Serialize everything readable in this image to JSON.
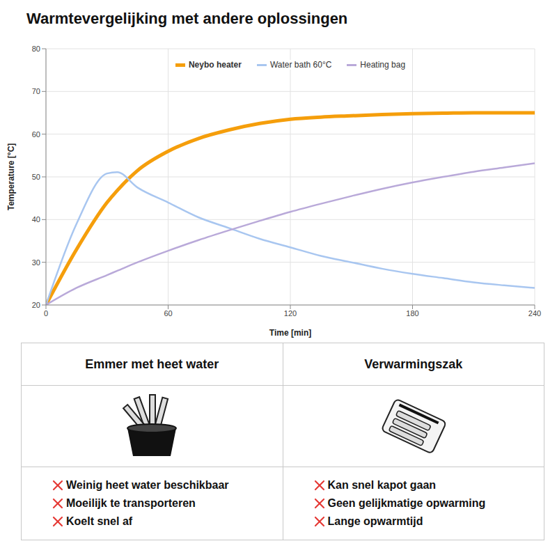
{
  "chart_data": {
    "type": "line",
    "title": "Warmtevergelijking met andere oplossingen",
    "x_label": "Time [min]",
    "y_label": "Temperature [°C]",
    "x": [
      0,
      15,
      30,
      35,
      45,
      60,
      75,
      90,
      105,
      120,
      135,
      150,
      165,
      180,
      195,
      210,
      225,
      240
    ],
    "series": [
      {
        "name": "Neybo heater",
        "color": "#f59e0b",
        "values": [
          20,
          33,
          44,
          46.8,
          51.5,
          56,
          59,
          61,
          62.5,
          63.5,
          64,
          64.3,
          64.6,
          64.8,
          64.9,
          65,
          65,
          65
        ]
      },
      {
        "name": "Water bath 60°C",
        "color": "#a8c6f0",
        "values": [
          20,
          39,
          50.8,
          51.1,
          47.5,
          44,
          40.5,
          38,
          35.5,
          33.5,
          31.5,
          30,
          28.5,
          27.3,
          26.3,
          25.3,
          24.6,
          24
        ]
      },
      {
        "name": "Heating bag",
        "color": "#b9a9d9",
        "values": [
          20,
          24,
          27,
          28,
          30,
          32.7,
          35.2,
          37.5,
          39.7,
          41.8,
          43.7,
          45.5,
          47.2,
          48.7,
          50,
          51.2,
          52.2,
          53.2
        ]
      }
    ],
    "xlim": [
      0,
      240
    ],
    "xticks": [
      0,
      60,
      120,
      180,
      240
    ],
    "ylim": [
      20,
      80
    ],
    "yticks": [
      20,
      30,
      40,
      50,
      60,
      70,
      80
    ],
    "grid": true,
    "legend": "top"
  },
  "table": {
    "columns": [
      {
        "header": "Emmer met heet water",
        "items": [
          "Weinig heet water beschikbaar",
          "Moeilijk te transporteren",
          "Koelt snel af"
        ]
      },
      {
        "header": "Verwarmingszak",
        "items": [
          "Kan snel kapot gaan",
          "Geen gelijkmatige opwarming",
          "Lange opwarmtijd"
        ]
      }
    ]
  }
}
